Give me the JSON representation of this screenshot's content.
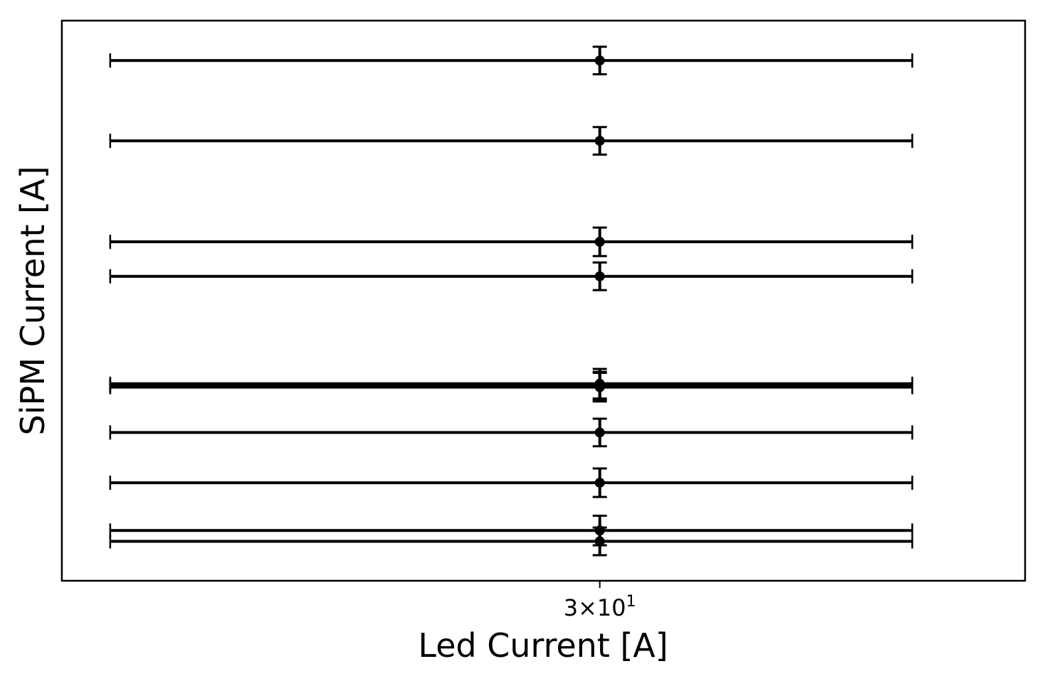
{
  "chart_data": {
    "type": "scatter",
    "title": "",
    "xlabel": "Led Current [A]",
    "ylabel": "SiPM Current [A]",
    "x_scale": "log",
    "x_tick_label": {
      "mantissa": "3",
      "times": "×",
      "base": "10",
      "exponent": "1"
    },
    "x_tick_value": 30,
    "xlim": [
      16.26,
      48.69
    ],
    "x_error": [
      12.82,
      12.82
    ],
    "ylim": [
      -0.56,
      10.81
    ],
    "y_ticks_shown": false,
    "grid": false,
    "legend": "none",
    "marker": "filled-circle",
    "color": "#000000",
    "series": [
      {
        "x": [
          30,
          30,
          30,
          30,
          30,
          30,
          30,
          30,
          30,
          30,
          30
        ],
        "y": [
          10.0,
          8.37,
          6.32,
          5.62,
          3.44,
          3.37,
          2.45,
          1.43,
          0.46,
          0.24,
          3.4
        ],
        "y_error": [
          0.28,
          0.28,
          0.29,
          0.28,
          0.3,
          0.29,
          0.28,
          0.29,
          0.3,
          0.28,
          0.28
        ]
      }
    ]
  }
}
